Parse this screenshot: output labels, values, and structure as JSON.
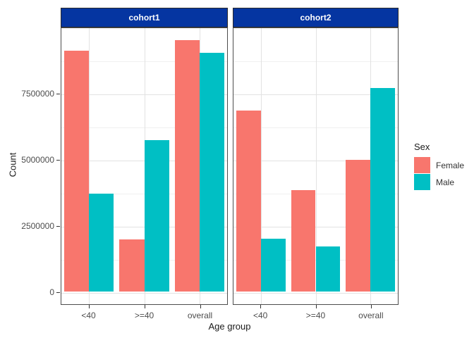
{
  "chart_data": {
    "type": "bar",
    "title": "",
    "xlabel": "Age group",
    "ylabel": "Count",
    "categories": [
      "<40",
      ">=40",
      "overall"
    ],
    "facets": [
      {
        "label": "cohort1",
        "series": [
          {
            "name": "Female",
            "values": [
              9150000,
              1980000,
              9550000
            ]
          },
          {
            "name": "Male",
            "values": [
              3730000,
              5750000,
              9070000
            ]
          }
        ]
      },
      {
        "label": "cohort2",
        "series": [
          {
            "name": "Female",
            "values": [
              6880000,
              3840000,
              5000000
            ]
          },
          {
            "name": "Male",
            "values": [
              2020000,
              1710000,
              7740000
            ]
          }
        ]
      }
    ],
    "ylim": [
      -480000,
      10000000
    ],
    "yticks": [
      0,
      2500000,
      5000000,
      7500000
    ],
    "yticks_minor": [
      1250000,
      3750000,
      6250000,
      8750000
    ],
    "grid": true,
    "legend": {
      "title": "Sex",
      "position": "right",
      "entries": [
        {
          "label": "Female",
          "color": "#F8766D"
        },
        {
          "label": "Male",
          "color": "#00BFC4"
        }
      ]
    },
    "strip_background": "#0535A1",
    "strip_text_color": "#ffffff"
  }
}
